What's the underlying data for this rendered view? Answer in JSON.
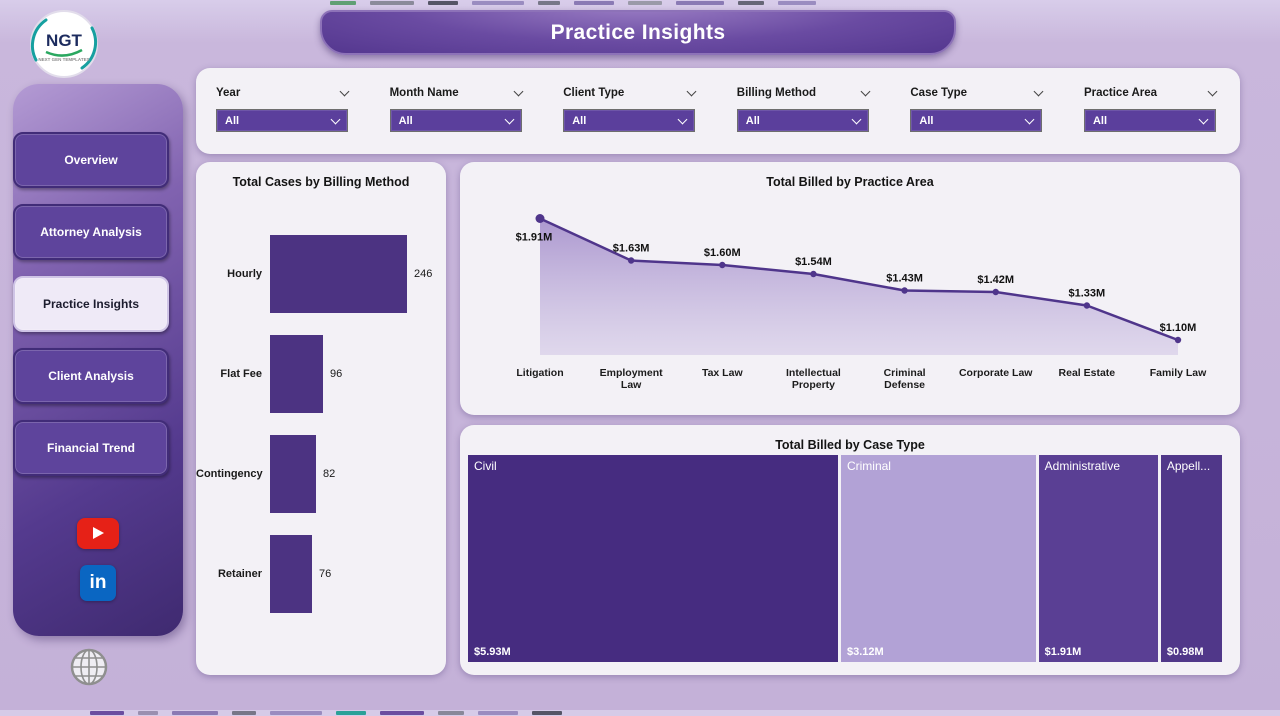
{
  "app": {
    "title": "Practice Insights"
  },
  "logo": {
    "text": "NGT",
    "tagline": "NEXT GEN TEMPLATES"
  },
  "sidebar": {
    "items": [
      {
        "label": "Overview",
        "active": false
      },
      {
        "label": "Attorney Analysis",
        "active": false
      },
      {
        "label": "Practice Insights",
        "active": true
      },
      {
        "label": "Client Analysis",
        "active": false
      },
      {
        "label": "Financial Trend",
        "active": false
      }
    ],
    "social": [
      "youtube",
      "linkedin",
      "globe"
    ]
  },
  "filters": [
    {
      "label": "Year",
      "value": "All"
    },
    {
      "label": "Month Name",
      "value": "All"
    },
    {
      "label": "Client Type",
      "value": "All"
    },
    {
      "label": "Billing Method",
      "value": "All"
    },
    {
      "label": "Case Type",
      "value": "All"
    },
    {
      "label": "Practice Area",
      "value": "All"
    }
  ],
  "chart_data": [
    {
      "type": "bar",
      "orientation": "horizontal",
      "title": "Total Cases by Billing Method",
      "categories": [
        "Hourly",
        "Flat Fee",
        "Contingency",
        "Retainer"
      ],
      "values": [
        246,
        96,
        82,
        76
      ],
      "xlim": [
        0,
        250
      ],
      "bar_color": "#4c3382"
    },
    {
      "type": "area",
      "title": "Total Billed by Practice Area",
      "categories": [
        "Litigation",
        "Employment Law",
        "Tax Law",
        "Intellectual Property",
        "Criminal Defense",
        "Corporate Law",
        "Real Estate",
        "Family Law"
      ],
      "values": [
        1.91,
        1.63,
        1.6,
        1.54,
        1.43,
        1.42,
        1.33,
        1.1
      ],
      "labels": [
        "$1.91M",
        "$1.63M",
        "$1.60M",
        "$1.54M",
        "$1.43M",
        "$1.42M",
        "$1.33M",
        "$1.10M"
      ],
      "wrap": [
        false,
        true,
        false,
        true,
        true,
        false,
        false,
        false
      ],
      "unit": "USD millions",
      "y_range_hint": [
        1.0,
        2.0
      ]
    },
    {
      "type": "treemap",
      "title": "Total Billed by Case Type",
      "tiles": [
        {
          "name": "Civil",
          "value": 5.93,
          "label": "$5.93M",
          "color": "#462c80"
        },
        {
          "name": "Criminal",
          "value": 3.12,
          "label": "$3.12M",
          "color": "#b2a2d6"
        },
        {
          "name": "Administrative",
          "value": 1.91,
          "label": "$1.91M",
          "color": "#5a3f94"
        },
        {
          "name": "Appell...",
          "value": 0.98,
          "label": "$0.98M",
          "color": "#503789"
        }
      ]
    }
  ],
  "colors": {
    "accent": "#5b3f9c",
    "line": "#4f358b",
    "bar": "#4c3382",
    "banner": "#5a3a92",
    "youtube_red": "#e62117",
    "linkedin_blue": "#0a66c2"
  }
}
